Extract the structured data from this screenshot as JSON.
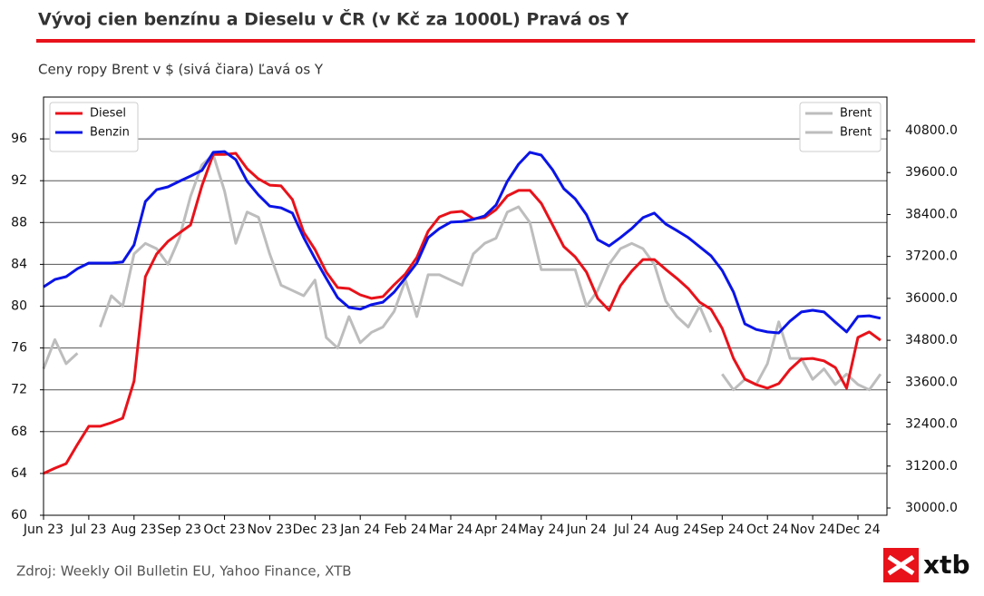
{
  "chart_data": {
    "type": "line",
    "title": "Vývoj cien benzínu a Dieselu v ČR (v Kč za 1000L) Pravá os Y",
    "subtitle": "Ceny ropy Brent v $ (sivá čiara) Ľavá os Y",
    "source": "Zdroj: Weekly Oil Bulletin EU, Yahoo Finance, XTB",
    "categories": [
      "Jun 23",
      null,
      null,
      null,
      "Jul 23",
      null,
      null,
      null,
      "Aug 23",
      null,
      null,
      null,
      "Sep 23",
      null,
      null,
      null,
      "Oct 23",
      null,
      null,
      null,
      "Nov 23",
      null,
      null,
      null,
      "Dec 23",
      null,
      null,
      null,
      "Jan 24",
      null,
      null,
      null,
      "Feb 24",
      null,
      null,
      null,
      "Mar 24",
      null,
      null,
      null,
      "Apr 24",
      null,
      null,
      null,
      "May 24",
      null,
      null,
      null,
      "Jun 24",
      null,
      null,
      null,
      "Jul 24",
      null,
      null,
      null,
      "Aug 24",
      null,
      null,
      null,
      "Sep 24",
      null,
      null,
      null,
      "Oct 24",
      null,
      null,
      null,
      "Nov 24",
      null,
      null,
      null,
      "Dec 24",
      null,
      null
    ],
    "series": [
      {
        "name": "Diesel",
        "color": "#e8121a",
        "axis": "y2",
        "values": [
          30990,
          31140,
          31270,
          31820,
          32340,
          32340,
          32440,
          32570,
          33630,
          36620,
          37270,
          37630,
          37870,
          38100,
          39220,
          40120,
          40120,
          40150,
          39710,
          39420,
          39240,
          39220,
          38830,
          37890,
          37400,
          36750,
          36310,
          36280,
          36100,
          36000,
          36050,
          36390,
          36700,
          37170,
          37920,
          38330,
          38460,
          38490,
          38280,
          38310,
          38540,
          38930,
          39090,
          39090,
          38720,
          38100,
          37480,
          37190,
          36750,
          36000,
          35660,
          36360,
          36780,
          37110,
          37110,
          36830,
          36570,
          36280,
          35890,
          35690,
          35140,
          34280,
          33690,
          33530,
          33430,
          33560,
          33970,
          34260,
          34280,
          34210,
          34020,
          33430,
          34880,
          35040,
          34800
        ]
      },
      {
        "name": "Benzin",
        "color": "#0a14e6",
        "axis": "y2",
        "values": [
          36330,
          36540,
          36620,
          36850,
          37010,
          37010,
          37010,
          37040,
          37530,
          38770,
          39110,
          39190,
          39350,
          39500,
          39660,
          40180,
          40200,
          39970,
          39350,
          38960,
          38640,
          38590,
          38440,
          37740,
          37140,
          36570,
          36020,
          35740,
          35690,
          35820,
          35890,
          36180,
          36590,
          37010,
          37740,
          38000,
          38180,
          38200,
          38260,
          38360,
          38670,
          39350,
          39840,
          40180,
          40100,
          39680,
          39140,
          38850,
          38390,
          37680,
          37500,
          37740,
          38000,
          38310,
          38440,
          38130,
          37940,
          37740,
          37480,
          37220,
          36800,
          36180,
          35270,
          35110,
          35040,
          35010,
          35350,
          35610,
          35660,
          35610,
          35320,
          35040,
          35480,
          35500,
          35430
        ]
      },
      {
        "name": "Brent",
        "color": "#bdbdbd",
        "axis": "y",
        "values": [
          74,
          76.8,
          74.5,
          75.5,
          null,
          78,
          81,
          80,
          85,
          86,
          85.5,
          84,
          86.5,
          90.5,
          93.5,
          94.5,
          91,
          86,
          89,
          88.5,
          85,
          82,
          81.5,
          81,
          82.5,
          77,
          76,
          79,
          76.5,
          77.5,
          78,
          79.5,
          82.5,
          79,
          83,
          83,
          82.5,
          82,
          85,
          86,
          86.5,
          89,
          89.5,
          88,
          83.5,
          83.5,
          83.5,
          83.5,
          80,
          81.5,
          84,
          85.5,
          86,
          85.5,
          84,
          80.5,
          79,
          78,
          80,
          77.5,
          null,
          null,
          null,
          null,
          null,
          null,
          null,
          null,
          null,
          null,
          null,
          null,
          null,
          null,
          null
        ]
      },
      {
        "name": "Brent",
        "color": "#bdbdbd",
        "axis": "y",
        "values": [
          null,
          null,
          null,
          null,
          null,
          null,
          null,
          null,
          null,
          null,
          null,
          null,
          null,
          null,
          null,
          null,
          null,
          null,
          null,
          null,
          null,
          null,
          null,
          null,
          null,
          null,
          null,
          null,
          null,
          null,
          null,
          null,
          null,
          null,
          null,
          null,
          null,
          null,
          null,
          null,
          null,
          null,
          null,
          null,
          null,
          null,
          null,
          null,
          null,
          null,
          null,
          null,
          null,
          null,
          null,
          null,
          null,
          null,
          null,
          null,
          73.5,
          72,
          73,
          72.5,
          74.5,
          78.5,
          75,
          75,
          73,
          74,
          72.5,
          73.5,
          72.5,
          72,
          73.5
        ]
      }
    ],
    "ylim": [
      60,
      100
    ],
    "yticks": [
      60,
      64,
      68,
      72,
      76,
      80,
      84,
      88,
      92,
      96
    ],
    "y2lim": [
      29792,
      41761
    ],
    "y2ticks": [
      {
        "value": 30000,
        "label": "30000.0"
      },
      {
        "value": 31200,
        "label": "31200.0"
      },
      {
        "value": 32400,
        "label": "32400.0"
      },
      {
        "value": 33600,
        "label": "33600.0"
      },
      {
        "value": 34800,
        "label": "34800.0"
      },
      {
        "value": 36000,
        "label": "36000.0"
      },
      {
        "value": 37200,
        "label": "37200.0"
      },
      {
        "value": 38400,
        "label": "38400.0"
      },
      {
        "value": 39600,
        "label": "39600.0"
      },
      {
        "value": 40800,
        "label": "40800.0"
      }
    ],
    "grid": true,
    "legend_y2_loc": "upper left",
    "legend_y_loc": "upper right"
  },
  "brand": "xtb"
}
